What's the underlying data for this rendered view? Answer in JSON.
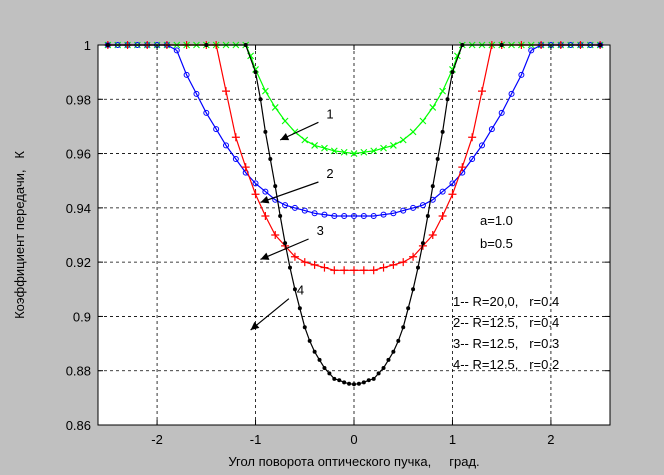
{
  "chart_data": {
    "type": "line",
    "title": "",
    "xlabel": "Угол поворота оптического пучка,     град.",
    "ylabel": "Коэффициент передачи,   К",
    "xlim": [
      -2.6,
      2.6
    ],
    "ylim": [
      0.86,
      1.0
    ],
    "xticks": [
      -2,
      -1,
      0,
      1,
      2
    ],
    "yticks": [
      0.86,
      0.88,
      0.9,
      0.92,
      0.94,
      0.96,
      0.98,
      1.0
    ],
    "ytick_labels": [
      "0.86",
      "0.88",
      "0.9",
      "0.92",
      "0.94",
      "0.96",
      "0.98",
      "1"
    ],
    "grid": true,
    "series": [
      {
        "name": "1",
        "color": "#00ff00",
        "marker": "cross",
        "x": [
          -2.5,
          -2.4,
          -2.3,
          -2.2,
          -2.1,
          -2.0,
          -1.9,
          -1.8,
          -1.7,
          -1.6,
          -1.5,
          -1.4,
          -1.3,
          -1.2,
          -1.1,
          -1.05,
          -1.0,
          -0.9,
          -0.8,
          -0.7,
          -0.6,
          -0.5,
          -0.4,
          -0.3,
          -0.2,
          -0.1,
          0.0,
          0.1,
          0.2,
          0.3,
          0.4,
          0.5,
          0.6,
          0.7,
          0.8,
          0.9,
          1.0,
          1.05,
          1.1,
          1.2,
          1.3,
          1.4,
          1.5,
          1.6,
          1.7,
          1.8,
          1.9,
          2.0,
          2.1,
          2.2,
          2.3,
          2.4,
          2.5
        ],
        "y": [
          1.0,
          1.0,
          1.0,
          1.0,
          1.0,
          1.0,
          1.0,
          1.0,
          1.0,
          1.0,
          1.0,
          1.0,
          1.0,
          1.0,
          1.0,
          0.996,
          0.991,
          0.983,
          0.977,
          0.972,
          0.968,
          0.965,
          0.963,
          0.962,
          0.961,
          0.9605,
          0.96,
          0.9605,
          0.961,
          0.962,
          0.963,
          0.965,
          0.968,
          0.972,
          0.977,
          0.983,
          0.991,
          0.996,
          1.0,
          1.0,
          1.0,
          1.0,
          1.0,
          1.0,
          1.0,
          1.0,
          1.0,
          1.0,
          1.0,
          1.0,
          1.0,
          1.0,
          1.0
        ]
      },
      {
        "name": "2",
        "color": "#0000ff",
        "marker": "circle",
        "x": [
          -2.5,
          -2.4,
          -2.3,
          -2.2,
          -2.1,
          -2.0,
          -1.9,
          -1.8,
          -1.7,
          -1.6,
          -1.5,
          -1.4,
          -1.3,
          -1.2,
          -1.1,
          -1.0,
          -0.9,
          -0.8,
          -0.7,
          -0.6,
          -0.5,
          -0.4,
          -0.3,
          -0.2,
          -0.1,
          0.0,
          0.1,
          0.2,
          0.3,
          0.4,
          0.5,
          0.6,
          0.7,
          0.8,
          0.9,
          1.0,
          1.1,
          1.2,
          1.3,
          1.4,
          1.5,
          1.6,
          1.7,
          1.8,
          1.9,
          2.0,
          2.1,
          2.2,
          2.3,
          2.4,
          2.5
        ],
        "y": [
          1.0,
          1.0,
          1.0,
          1.0,
          1.0,
          1.0,
          1.0,
          0.998,
          0.989,
          0.982,
          0.975,
          0.969,
          0.963,
          0.958,
          0.953,
          0.949,
          0.946,
          0.943,
          0.941,
          0.94,
          0.939,
          0.938,
          0.9375,
          0.937,
          0.937,
          0.937,
          0.937,
          0.937,
          0.9375,
          0.938,
          0.939,
          0.94,
          0.941,
          0.943,
          0.946,
          0.949,
          0.953,
          0.958,
          0.963,
          0.969,
          0.975,
          0.982,
          0.989,
          0.998,
          1.0,
          1.0,
          1.0,
          1.0,
          1.0,
          1.0,
          1.0
        ]
      },
      {
        "name": "3",
        "color": "#ff0000",
        "marker": "plus",
        "x": [
          -2.5,
          -2.3,
          -2.1,
          -1.9,
          -1.7,
          -1.5,
          -1.4,
          -1.3,
          -1.2,
          -1.1,
          -1.0,
          -0.9,
          -0.8,
          -0.7,
          -0.6,
          -0.5,
          -0.4,
          -0.3,
          -0.2,
          -0.1,
          0.0,
          0.1,
          0.2,
          0.3,
          0.4,
          0.5,
          0.6,
          0.7,
          0.8,
          0.9,
          1.0,
          1.1,
          1.2,
          1.3,
          1.4,
          1.5,
          1.7,
          1.9,
          2.1,
          2.3,
          2.5
        ],
        "y": [
          1.0,
          1.0,
          1.0,
          1.0,
          1.0,
          1.0,
          1.0,
          0.983,
          0.966,
          0.955,
          0.945,
          0.937,
          0.93,
          0.926,
          0.922,
          0.92,
          0.919,
          0.918,
          0.917,
          0.917,
          0.917,
          0.917,
          0.917,
          0.918,
          0.919,
          0.92,
          0.922,
          0.926,
          0.93,
          0.937,
          0.945,
          0.955,
          0.966,
          0.983,
          1.0,
          1.0,
          1.0,
          1.0,
          1.0,
          1.0,
          1.0
        ]
      },
      {
        "name": "4",
        "color": "#000000",
        "marker": "dot",
        "x": [
          -2.5,
          -1.5,
          -1.1,
          -1.0,
          -0.95,
          -0.9,
          -0.85,
          -0.8,
          -0.75,
          -0.7,
          -0.65,
          -0.6,
          -0.55,
          -0.5,
          -0.45,
          -0.4,
          -0.35,
          -0.3,
          -0.25,
          -0.2,
          -0.15,
          -0.1,
          -0.05,
          0.0,
          0.05,
          0.1,
          0.15,
          0.2,
          0.25,
          0.3,
          0.35,
          0.4,
          0.45,
          0.5,
          0.55,
          0.6,
          0.65,
          0.7,
          0.75,
          0.8,
          0.85,
          0.9,
          0.95,
          1.0,
          1.1,
          1.5,
          2.5
        ],
        "y": [
          1.0,
          1.0,
          1.0,
          0.99,
          0.98,
          0.968,
          0.958,
          0.948,
          0.937,
          0.927,
          0.918,
          0.91,
          0.903,
          0.896,
          0.891,
          0.887,
          0.884,
          0.881,
          0.879,
          0.877,
          0.8765,
          0.8757,
          0.8752,
          0.875,
          0.8752,
          0.8757,
          0.8765,
          0.877,
          0.879,
          0.881,
          0.884,
          0.887,
          0.891,
          0.896,
          0.903,
          0.91,
          0.918,
          0.927,
          0.937,
          0.948,
          0.958,
          0.968,
          0.98,
          0.99,
          1.0,
          1.0,
          1.0
        ]
      }
    ],
    "annotations": [
      {
        "text": "1",
        "x": -0.75,
        "y": 0.965,
        "tx": -0.28,
        "ty": 0.973
      },
      {
        "text": "2",
        "x": -0.95,
        "y": 0.942,
        "tx": -0.28,
        "ty": 0.951
      },
      {
        "text": "3",
        "x": -0.95,
        "y": 0.921,
        "tx": -0.38,
        "ty": 0.93
      },
      {
        "text": "4",
        "x": -1.05,
        "y": 0.895,
        "tx": -0.58,
        "ty": 0.908
      }
    ],
    "params_text": [
      "a=1.0",
      "b=0.5"
    ],
    "legend_text": [
      "1-- R=20,0,   r=0.4",
      "2-- R=12.5,   r=0.4",
      "3-- R=12.5,   r=0.3",
      "4-- R=12.5,   r=0.2"
    ]
  }
}
